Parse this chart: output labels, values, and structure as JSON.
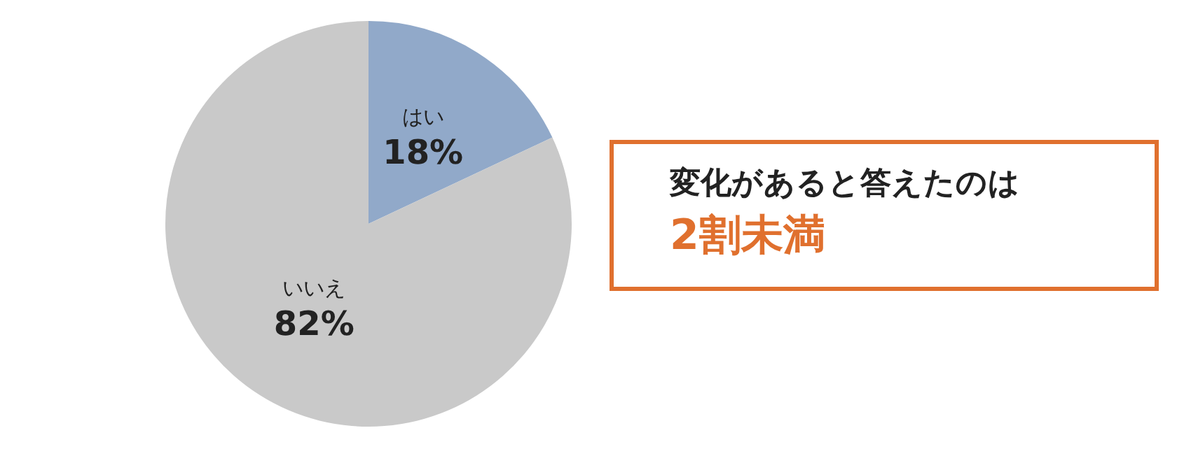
{
  "chart_data": {
    "type": "pie",
    "categories": [
      "はい",
      "いいえ"
    ],
    "values": [
      18,
      82
    ],
    "colors": [
      "#91a9c9",
      "#c9c9c9"
    ],
    "value_labels": [
      "18%",
      "82%"
    ],
    "legend": false,
    "annotations": [
      "変化があると答えたのは",
      "2割未満"
    ]
  }
}
